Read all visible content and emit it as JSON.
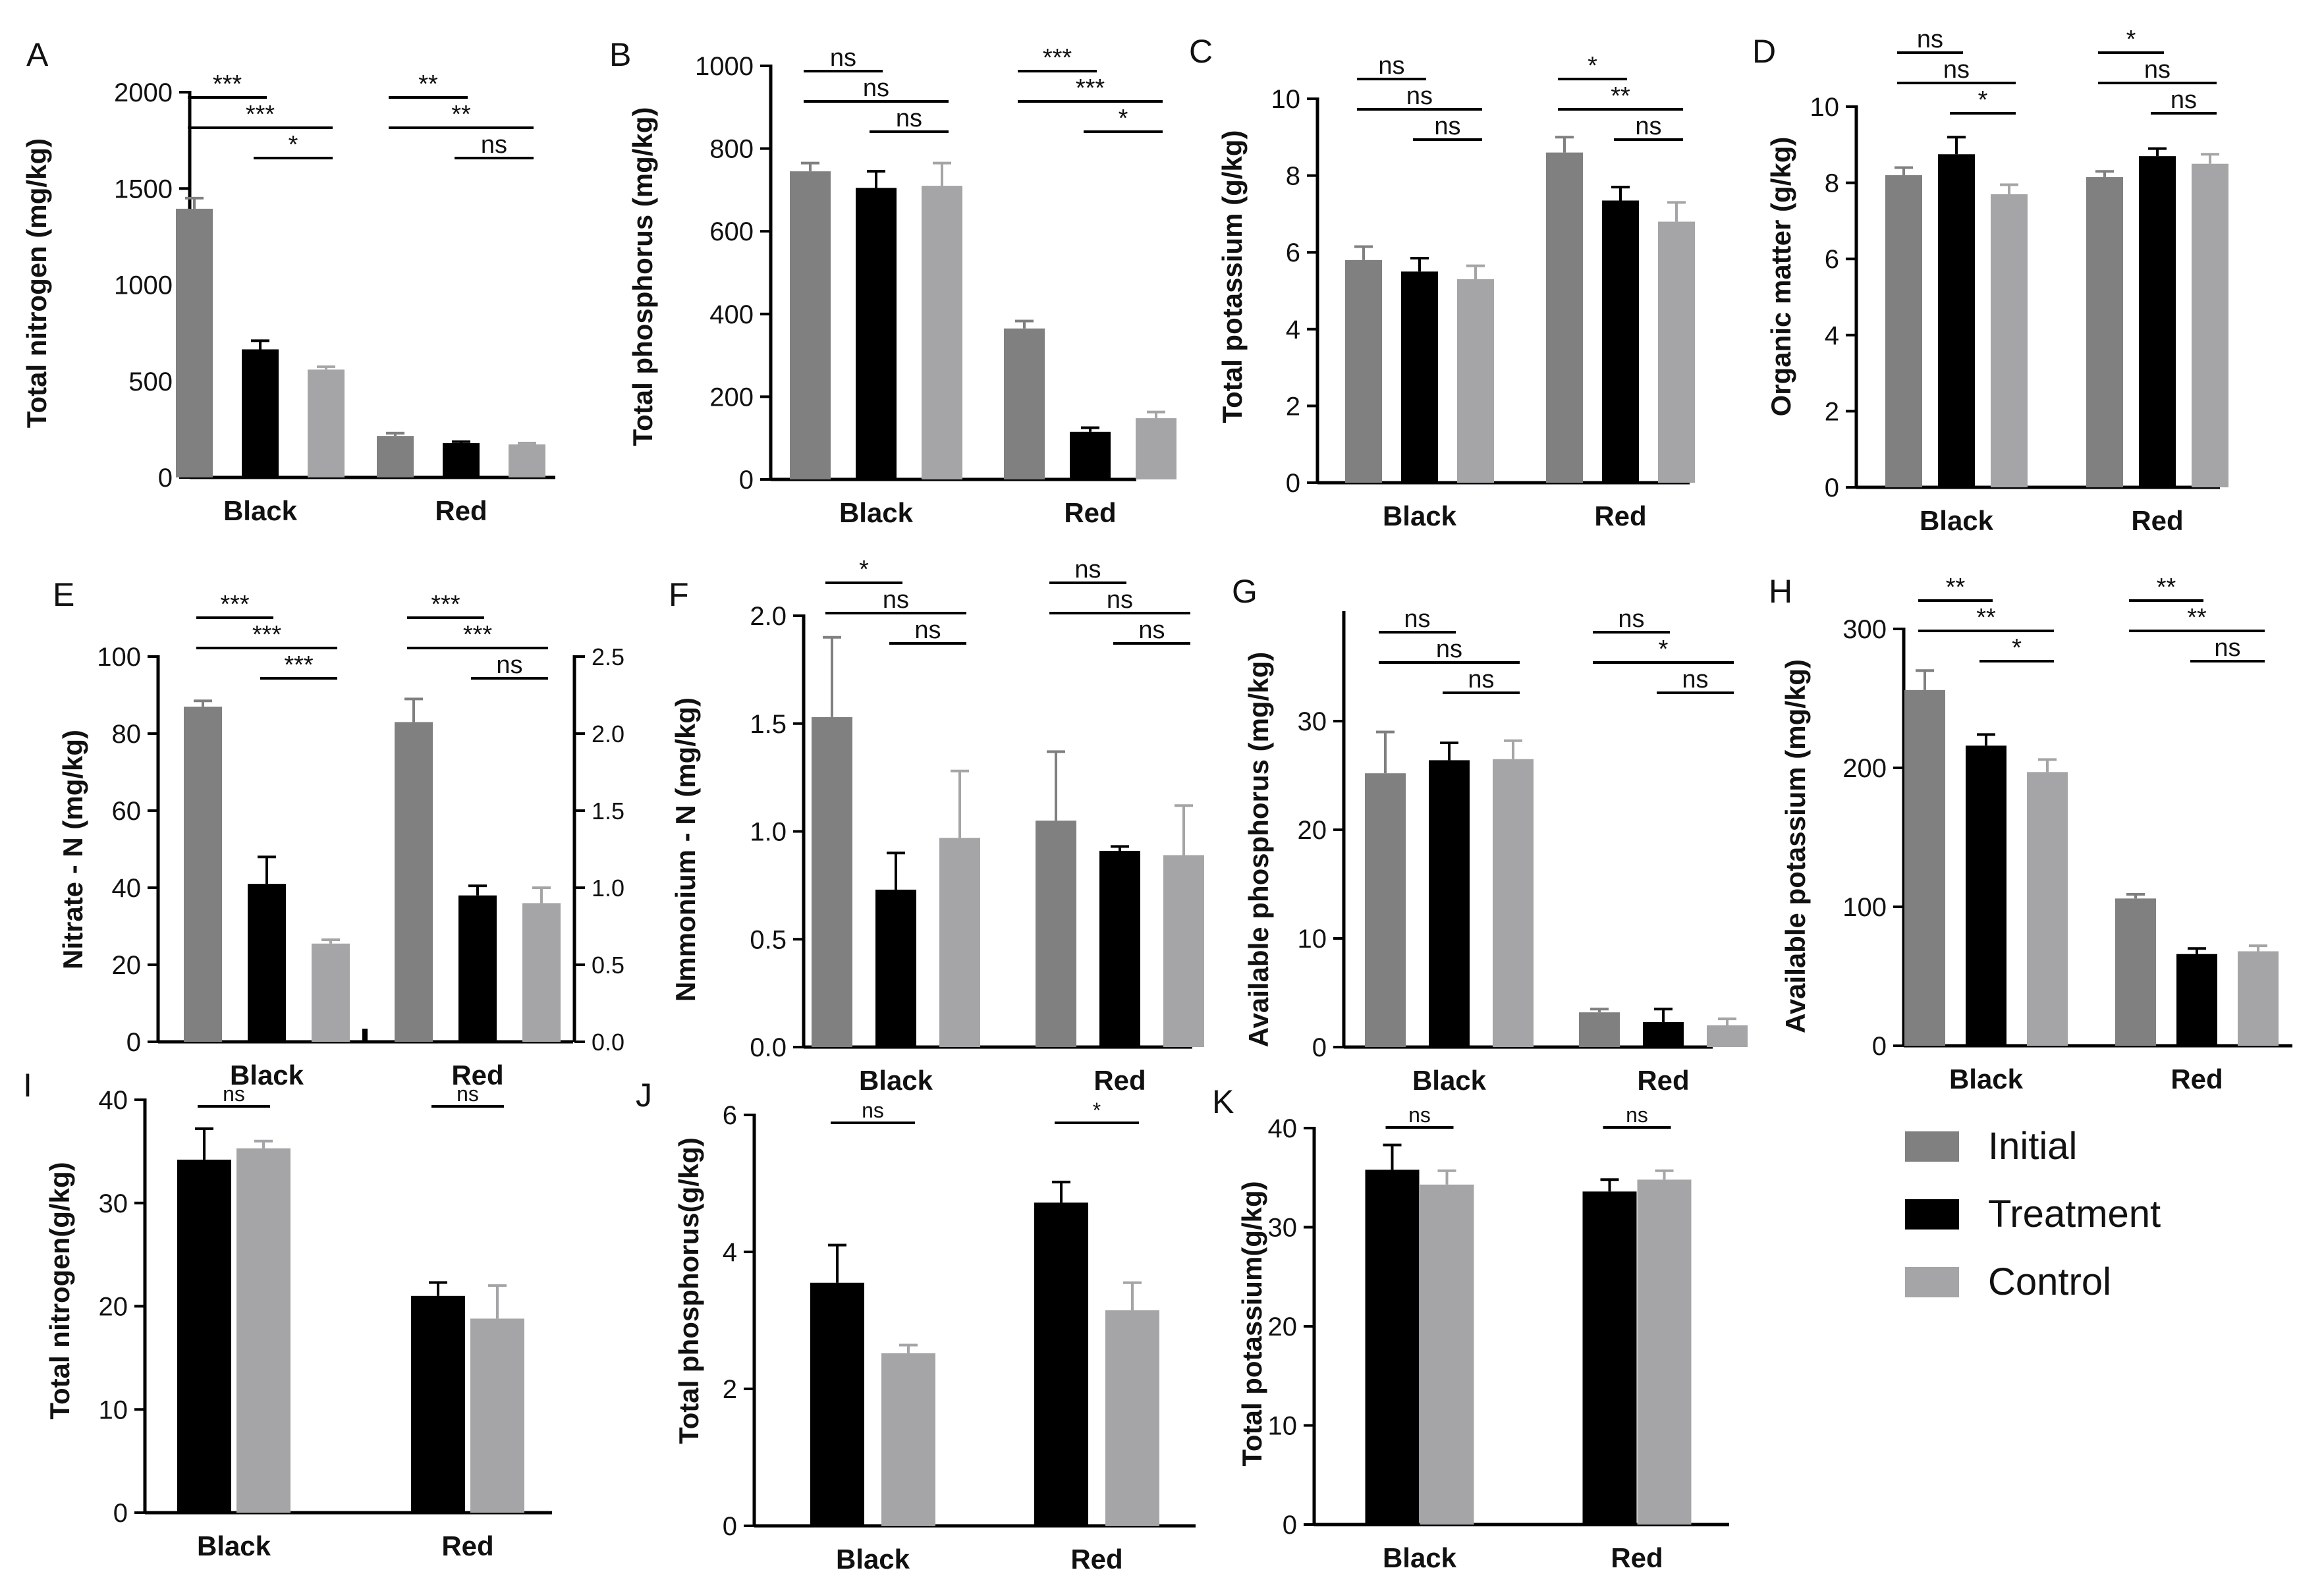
{
  "colors": {
    "Initial": "#808080",
    "Treatment": "#000000",
    "Control": "#a5a5a7",
    "axis": "#000000"
  },
  "legend": [
    {
      "label": "Initial",
      "color": "#808080"
    },
    {
      "label": "Treatment",
      "color": "#000000"
    },
    {
      "label": "Control",
      "color": "#a5a5a7"
    }
  ],
  "chart_data": [
    {
      "id": "A",
      "type": "bar",
      "ylabel": "Total nitrogen (mg/kg)",
      "ylim": [
        0,
        2000
      ],
      "yticks": [
        0,
        500,
        1000,
        1500,
        2000
      ],
      "categories": [
        "Black",
        "Red"
      ],
      "series": [
        {
          "name": "Initial",
          "values": [
            1395,
            215
          ],
          "errors": [
            55,
            15
          ]
        },
        {
          "name": "Treatment",
          "values": [
            665,
            178
          ],
          "errors": [
            45,
            8
          ]
        },
        {
          "name": "Control",
          "values": [
            560,
            172
          ],
          "errors": [
            15,
            6
          ]
        }
      ],
      "annotations": [
        {
          "group": 0,
          "pair": [
            0,
            1
          ],
          "text": "***"
        },
        {
          "group": 0,
          "pair": [
            0,
            2
          ],
          "text": "***"
        },
        {
          "group": 0,
          "pair": [
            1,
            2
          ],
          "text": "*"
        },
        {
          "group": 1,
          "pair": [
            0,
            1
          ],
          "text": "**"
        },
        {
          "group": 1,
          "pair": [
            0,
            2
          ],
          "text": "**"
        },
        {
          "group": 1,
          "pair": [
            1,
            2
          ],
          "text": "ns"
        }
      ]
    },
    {
      "id": "B",
      "type": "bar",
      "ylabel": "Total phosphorus (mg/kg)",
      "ylim": [
        0,
        1000
      ],
      "yticks": [
        0,
        200,
        400,
        600,
        800,
        1000
      ],
      "categories": [
        "Black",
        "Red"
      ],
      "series": [
        {
          "name": "Initial",
          "values": [
            745,
            365
          ],
          "errors": [
            20,
            18
          ]
        },
        {
          "name": "Treatment",
          "values": [
            705,
            115
          ],
          "errors": [
            40,
            10
          ]
        },
        {
          "name": "Control",
          "values": [
            710,
            148
          ],
          "errors": [
            55,
            15
          ]
        }
      ],
      "annotations": [
        {
          "group": 0,
          "pair": [
            0,
            1
          ],
          "text": "ns"
        },
        {
          "group": 0,
          "pair": [
            0,
            2
          ],
          "text": "ns"
        },
        {
          "group": 0,
          "pair": [
            1,
            2
          ],
          "text": "ns"
        },
        {
          "group": 1,
          "pair": [
            0,
            1
          ],
          "text": "***"
        },
        {
          "group": 1,
          "pair": [
            0,
            2
          ],
          "text": "***"
        },
        {
          "group": 1,
          "pair": [
            1,
            2
          ],
          "text": "*"
        }
      ]
    },
    {
      "id": "C",
      "type": "bar",
      "ylabel": "Total potassium (g/kg)",
      "ylim": [
        0,
        10
      ],
      "yticks": [
        0,
        2,
        4,
        6,
        8,
        10
      ],
      "categories": [
        "Black",
        "Red"
      ],
      "series": [
        {
          "name": "Initial",
          "values": [
            5.8,
            8.6
          ],
          "errors": [
            0.35,
            0.4
          ]
        },
        {
          "name": "Treatment",
          "values": [
            5.5,
            7.35
          ],
          "errors": [
            0.35,
            0.35
          ]
        },
        {
          "name": "Control",
          "values": [
            5.3,
            6.8
          ],
          "errors": [
            0.35,
            0.5
          ]
        }
      ],
      "annotations": [
        {
          "group": 0,
          "pair": [
            0,
            1
          ],
          "text": "ns"
        },
        {
          "group": 0,
          "pair": [
            0,
            2
          ],
          "text": "ns"
        },
        {
          "group": 0,
          "pair": [
            1,
            2
          ],
          "text": "ns"
        },
        {
          "group": 1,
          "pair": [
            0,
            1
          ],
          "text": "*"
        },
        {
          "group": 1,
          "pair": [
            0,
            2
          ],
          "text": "**"
        },
        {
          "group": 1,
          "pair": [
            1,
            2
          ],
          "text": "ns"
        }
      ]
    },
    {
      "id": "D",
      "type": "bar",
      "ylabel": "Organic matter (g/kg)",
      "ylim": [
        0,
        10
      ],
      "yticks": [
        0,
        2,
        4,
        6,
        8,
        10
      ],
      "categories": [
        "Black",
        "Red"
      ],
      "series": [
        {
          "name": "Initial",
          "values": [
            8.2,
            8.15
          ],
          "errors": [
            0.2,
            0.15
          ]
        },
        {
          "name": "Treatment",
          "values": [
            8.75,
            8.7
          ],
          "errors": [
            0.45,
            0.2
          ]
        },
        {
          "name": "Control",
          "values": [
            7.7,
            8.5
          ],
          "errors": [
            0.25,
            0.25
          ]
        }
      ],
      "annotations": [
        {
          "group": 0,
          "pair": [
            0,
            1
          ],
          "text": "ns"
        },
        {
          "group": 0,
          "pair": [
            0,
            2
          ],
          "text": "ns"
        },
        {
          "group": 0,
          "pair": [
            1,
            2
          ],
          "text": "*"
        },
        {
          "group": 1,
          "pair": [
            0,
            1
          ],
          "text": "*"
        },
        {
          "group": 1,
          "pair": [
            0,
            2
          ],
          "text": "ns"
        },
        {
          "group": 1,
          "pair": [
            1,
            2
          ],
          "text": "ns"
        }
      ]
    },
    {
      "id": "E",
      "type": "bar",
      "ylabel": "Nitrate - N (mg/kg)",
      "ylim": [
        0,
        100
      ],
      "yticks": [
        0,
        20,
        40,
        60,
        80,
        100
      ],
      "y2ticks": [
        "0.0",
        "0.5",
        "1.0",
        "1.5",
        "2.0",
        "2.5"
      ],
      "categories": [
        "Black",
        "Red"
      ],
      "series": [
        {
          "name": "Initial",
          "values": [
            87,
            83
          ],
          "errors": [
            1.5,
            6
          ]
        },
        {
          "name": "Treatment",
          "values": [
            41,
            38
          ],
          "errors": [
            7,
            2.5
          ]
        },
        {
          "name": "Control",
          "values": [
            25.5,
            36
          ],
          "errors": [
            1,
            4
          ]
        }
      ],
      "annotations": [
        {
          "group": 0,
          "pair": [
            0,
            1
          ],
          "text": "***"
        },
        {
          "group": 0,
          "pair": [
            0,
            2
          ],
          "text": "***"
        },
        {
          "group": 0,
          "pair": [
            1,
            2
          ],
          "text": "***"
        },
        {
          "group": 1,
          "pair": [
            0,
            1
          ],
          "text": "***"
        },
        {
          "group": 1,
          "pair": [
            0,
            2
          ],
          "text": "***"
        },
        {
          "group": 1,
          "pair": [
            1,
            2
          ],
          "text": "ns"
        }
      ]
    },
    {
      "id": "F",
      "type": "bar",
      "ylabel": "Nmmonium - N (mg/kg)",
      "ylim": [
        0,
        2.0
      ],
      "yticks": [
        "0.0",
        "0.5",
        "1.0",
        "1.5",
        "2.0"
      ],
      "categories": [
        "Black",
        "Red"
      ],
      "series": [
        {
          "name": "Initial",
          "values": [
            1.53,
            1.05
          ],
          "errors": [
            0.37,
            0.32
          ]
        },
        {
          "name": "Treatment",
          "values": [
            0.73,
            0.91
          ],
          "errors": [
            0.17,
            0.02
          ]
        },
        {
          "name": "Control",
          "values": [
            0.97,
            0.89
          ],
          "errors": [
            0.31,
            0.23
          ]
        }
      ],
      "annotations": [
        {
          "group": 0,
          "pair": [
            0,
            1
          ],
          "text": "*"
        },
        {
          "group": 0,
          "pair": [
            0,
            2
          ],
          "text": "ns"
        },
        {
          "group": 0,
          "pair": [
            1,
            2
          ],
          "text": "ns"
        },
        {
          "group": 1,
          "pair": [
            0,
            1
          ],
          "text": "ns"
        },
        {
          "group": 1,
          "pair": [
            0,
            2
          ],
          "text": "ns"
        },
        {
          "group": 1,
          "pair": [
            1,
            2
          ],
          "text": "ns"
        }
      ]
    },
    {
      "id": "G",
      "type": "bar",
      "ylabel": "Available phosphorus (mg/kg)",
      "ylim": [
        0,
        40
      ],
      "yticks": [
        0,
        10,
        20,
        30
      ],
      "categories": [
        "Black",
        "Red"
      ],
      "series": [
        {
          "name": "Initial",
          "values": [
            25.2,
            3.2
          ],
          "errors": [
            3.8,
            0.3
          ]
        },
        {
          "name": "Treatment",
          "values": [
            26.4,
            2.3
          ],
          "errors": [
            1.6,
            1.2
          ]
        },
        {
          "name": "Control",
          "values": [
            26.5,
            2.0
          ],
          "errors": [
            1.7,
            0.6
          ]
        }
      ],
      "annotations": [
        {
          "group": 0,
          "pair": [
            0,
            1
          ],
          "text": "ns"
        },
        {
          "group": 0,
          "pair": [
            0,
            2
          ],
          "text": "ns"
        },
        {
          "group": 0,
          "pair": [
            1,
            2
          ],
          "text": "ns"
        },
        {
          "group": 1,
          "pair": [
            0,
            1
          ],
          "text": "ns"
        },
        {
          "group": 1,
          "pair": [
            0,
            2
          ],
          "text": "*"
        },
        {
          "group": 1,
          "pair": [
            1,
            2
          ],
          "text": "ns"
        }
      ]
    },
    {
      "id": "H",
      "type": "bar",
      "ylabel": "Available potassium (mg/kg)",
      "ylim": [
        0,
        300
      ],
      "yticks": [
        0,
        100,
        200,
        300
      ],
      "categories": [
        "Black",
        "Red"
      ],
      "series": [
        {
          "name": "Initial",
          "values": [
            256,
            106
          ],
          "errors": [
            14,
            3
          ]
        },
        {
          "name": "Treatment",
          "values": [
            216,
            66
          ],
          "errors": [
            8,
            4
          ]
        },
        {
          "name": "Control",
          "values": [
            197,
            68
          ],
          "errors": [
            9,
            4
          ]
        }
      ],
      "annotations": [
        {
          "group": 0,
          "pair": [
            0,
            1
          ],
          "text": "**"
        },
        {
          "group": 0,
          "pair": [
            0,
            2
          ],
          "text": "**"
        },
        {
          "group": 0,
          "pair": [
            1,
            2
          ],
          "text": "*"
        },
        {
          "group": 1,
          "pair": [
            0,
            1
          ],
          "text": "**"
        },
        {
          "group": 1,
          "pair": [
            0,
            2
          ],
          "text": "**"
        },
        {
          "group": 1,
          "pair": [
            1,
            2
          ],
          "text": "ns"
        }
      ]
    },
    {
      "id": "I",
      "type": "bar",
      "ylabel": "Total nitrogen(g/kg)",
      "ylim": [
        0,
        40
      ],
      "yticks": [
        0,
        10,
        20,
        30,
        40
      ],
      "categories": [
        "Black",
        "Red"
      ],
      "series": [
        {
          "name": "Treatment",
          "values": [
            34.2,
            21.0
          ],
          "errors": [
            3.0,
            1.3
          ]
        },
        {
          "name": "Control",
          "values": [
            35.3,
            18.8
          ],
          "errors": [
            0.7,
            3.2
          ]
        }
      ],
      "annotations": [
        {
          "group": 0,
          "pair": [
            0,
            1
          ],
          "text": "ns"
        },
        {
          "group": 1,
          "pair": [
            0,
            1
          ],
          "text": "ns"
        }
      ]
    },
    {
      "id": "J",
      "type": "bar",
      "ylabel": "Total phosphorus(g/kg)",
      "ylim": [
        0,
        6
      ],
      "yticks": [
        0,
        2,
        4,
        6
      ],
      "categories": [
        "Black",
        "Red"
      ],
      "series": [
        {
          "name": "Treatment",
          "values": [
            3.55,
            4.72
          ],
          "errors": [
            0.55,
            0.3
          ]
        },
        {
          "name": "Control",
          "values": [
            2.52,
            3.15
          ],
          "errors": [
            0.12,
            0.4
          ]
        }
      ],
      "annotations": [
        {
          "group": 0,
          "pair": [
            0,
            1
          ],
          "text": "ns"
        },
        {
          "group": 1,
          "pair": [
            0,
            1
          ],
          "text": "*"
        }
      ]
    },
    {
      "id": "K",
      "type": "bar",
      "ylabel": "Total potassium(g/kg)",
      "ylim": [
        0,
        40
      ],
      "yticks": [
        0,
        10,
        20,
        30,
        40
      ],
      "categories": [
        "Black",
        "Red"
      ],
      "series": [
        {
          "name": "Treatment",
          "values": [
            35.8,
            33.6
          ],
          "errors": [
            2.5,
            1.2
          ]
        },
        {
          "name": "Control",
          "values": [
            34.3,
            34.8
          ],
          "errors": [
            1.4,
            0.9
          ]
        }
      ],
      "annotations": [
        {
          "group": 0,
          "pair": [
            0,
            1
          ],
          "text": "ns"
        },
        {
          "group": 1,
          "pair": [
            0,
            1
          ],
          "text": "ns"
        }
      ]
    }
  ]
}
